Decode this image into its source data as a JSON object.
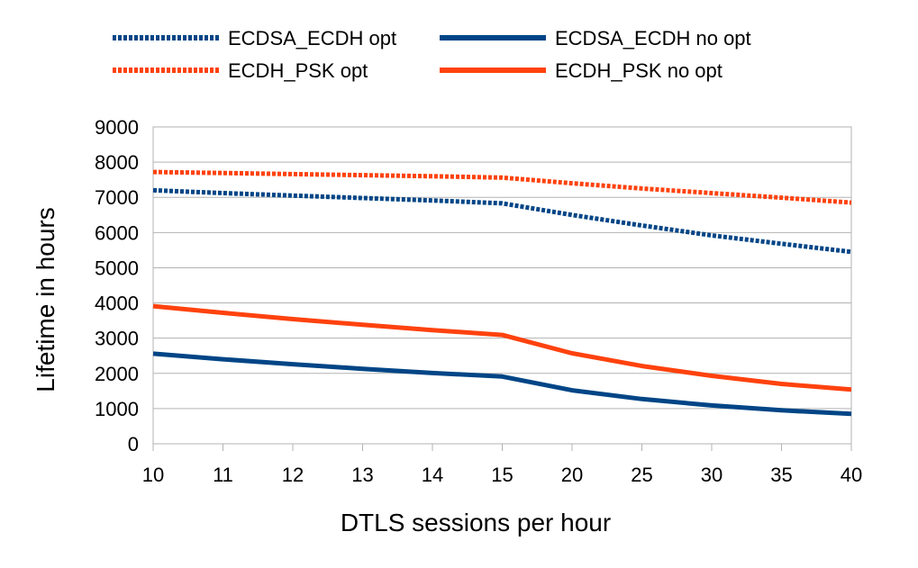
{
  "chart_data": {
    "type": "line",
    "title": "",
    "xlabel": "DTLS sessions per hour",
    "ylabel": "Lifetime in hours",
    "categories": [
      "10",
      "11",
      "12",
      "13",
      "14",
      "15",
      "20",
      "25",
      "30",
      "35",
      "40"
    ],
    "ylim": [
      0,
      9000
    ],
    "yticks": [
      "0",
      "1000",
      "2000",
      "3000",
      "4000",
      "5000",
      "6000",
      "7000",
      "8000",
      "9000"
    ],
    "grid": true,
    "legend_position": "top",
    "series": [
      {
        "name": "ECDSA_ECDH opt",
        "color": "#004586",
        "dash": "dotted",
        "values": [
          7200,
          7120,
          7050,
          6980,
          6910,
          6830,
          6500,
          6200,
          5920,
          5680,
          5450
        ]
      },
      {
        "name": "ECDSA_ECDH no opt",
        "color": "#004586",
        "dash": "solid",
        "values": [
          2560,
          2400,
          2260,
          2130,
          2010,
          1910,
          1520,
          1270,
          1090,
          950,
          850
        ]
      },
      {
        "name": "ECDH_PSK opt",
        "color": "#ff420e",
        "dash": "dotted",
        "values": [
          7720,
          7690,
          7660,
          7630,
          7600,
          7560,
          7400,
          7250,
          7120,
          6990,
          6850
        ]
      },
      {
        "name": "ECDH_PSK no opt",
        "color": "#ff420e",
        "dash": "solid",
        "values": [
          3910,
          3720,
          3540,
          3380,
          3230,
          3090,
          2570,
          2210,
          1930,
          1700,
          1540
        ]
      }
    ]
  }
}
